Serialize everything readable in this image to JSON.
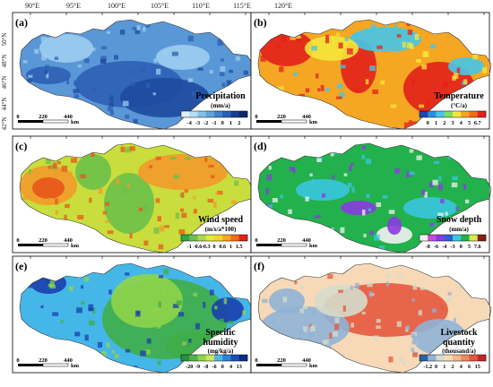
{
  "figure": {
    "top_axis": {
      "lon_labels": [
        "90°E",
        "95°E",
        "100°E",
        "105°E",
        "110°E",
        "115°E",
        "120°E"
      ]
    },
    "left_axis": {
      "lat_labels": [
        "50°N",
        "48°N",
        "46°N",
        "44°N",
        "42°N"
      ]
    },
    "scale_bar": {
      "ticks": [
        "0",
        "220",
        "440"
      ],
      "unit": "km"
    },
    "panels": [
      {
        "id": "a",
        "tag": "(a)",
        "title": "Precipitation",
        "unit": "(mm/a)",
        "legend_ticks": [
          "-4",
          "-3",
          "-2",
          "-1",
          "0",
          "1",
          "2"
        ],
        "legend_colors": [
          "#ddf0fb",
          "#b7def4",
          "#86c2e8",
          "#5ea3dc",
          "#3f83c9",
          "#2560b5",
          "#143e94",
          "#0a2a6e"
        ],
        "map_colors": {
          "base": "#5a97d6",
          "dark": "#2c5fb4",
          "light": "#9dcdf0",
          "deep": "#1d4aa0"
        }
      },
      {
        "id": "b",
        "tag": "(b)",
        "title": "Temperature",
        "unit": "(°C/a)",
        "legend_ticks": [
          "0",
          "1",
          "2",
          "3",
          "4",
          "5",
          "6.7"
        ],
        "legend_colors": [
          "#1f45b5",
          "#2a8fe0",
          "#45c6e8",
          "#7fdc6a",
          "#f4e73a",
          "#f5a623",
          "#f26a1b",
          "#e3201b"
        ],
        "map_colors": {
          "base": "#f5a623",
          "hot": "#e3201b",
          "cool": "#45c6e8",
          "mid": "#f4e73a"
        }
      },
      {
        "id": "c",
        "tag": "(c)",
        "title": "Wind speed",
        "unit": "(m/s/a*100)",
        "legend_ticks": [
          "-1",
          "-0.6",
          "-0.3",
          "0",
          "0.6",
          "1",
          "1.5"
        ],
        "legend_colors": [
          "#2ea84a",
          "#6cc04a",
          "#a9d84a",
          "#dfea3c",
          "#f6d22d",
          "#f5a623",
          "#f26a1b",
          "#e3201b"
        ],
        "map_colors": {
          "base": "#c9dd3c",
          "hot": "#e8551b",
          "warm": "#f29a2a",
          "green": "#6cc04a"
        }
      },
      {
        "id": "d",
        "tag": "(d)",
        "title": "Snow depth",
        "unit": "(mm/a)",
        "legend_ticks": [
          "-8",
          "-6",
          "-4",
          "-3",
          "0",
          "5",
          "7.6"
        ],
        "legend_colors": [
          "#f2f2f2",
          "#c84bd6",
          "#8a3be0",
          "#2b5fd6",
          "#38c7e0",
          "#22b14c",
          "#d8e84a",
          "#8a1c12"
        ],
        "map_colors": {
          "base": "#22b14c",
          "cyan": "#38c7e0",
          "violet": "#8a3be0",
          "white": "#f2f2f2"
        }
      },
      {
        "id": "e",
        "tag": "(e)",
        "title": "Specific",
        "title2": "humidity",
        "unit": "(mg/kg/a)",
        "legend_ticks": [
          "-20",
          "-9",
          "-8",
          "-6",
          "0",
          "4",
          "13"
        ],
        "legend_colors": [
          "#2a8f3a",
          "#4fb34a",
          "#8fd44a",
          "#c9e85a",
          "#4ab9e8",
          "#2a86d6",
          "#1a4fb8",
          "#0c2a8a"
        ],
        "map_colors": {
          "base": "#45b6e8",
          "green": "#3fae48",
          "dark": "#1a3fae",
          "light": "#8fd44a"
        }
      },
      {
        "id": "f",
        "tag": "(f)",
        "title": "Livestock",
        "title2": "quantity",
        "unit": "(thousand/a)",
        "legend_ticks": [
          "-1.2",
          "0",
          "1",
          "2",
          "4",
          "6",
          "15"
        ],
        "legend_colors": [
          "#2c5fa8",
          "#8fb3d6",
          "#d6dccb",
          "#f7d9b8",
          "#f6b98a",
          "#f08a5d",
          "#e4583f",
          "#c0262a"
        ],
        "map_colors": {
          "base": "#f7d9b8",
          "blue": "#8fb3d6",
          "red": "#e4583f",
          "pale": "#d6dccb"
        }
      }
    ]
  }
}
